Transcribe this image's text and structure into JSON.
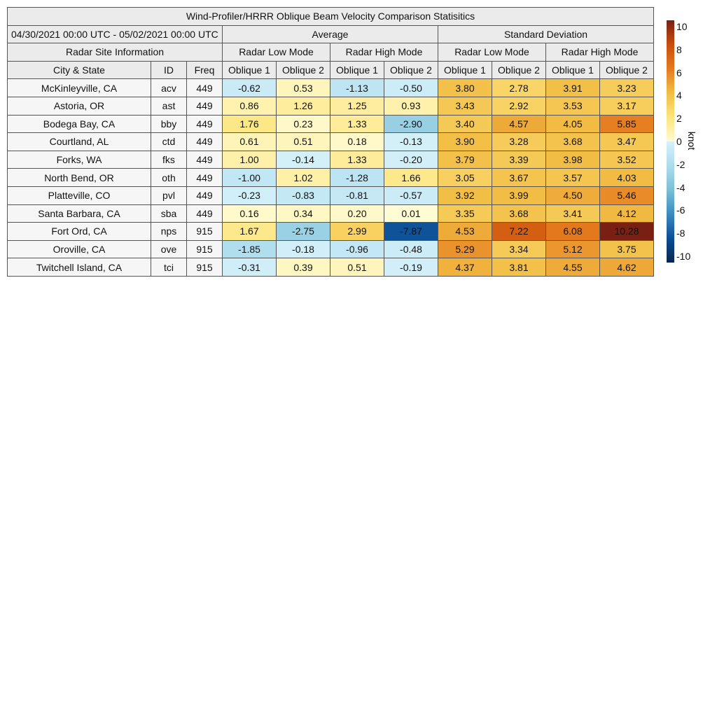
{
  "chart_data": {
    "type": "heatmap",
    "title": "Wind-Profiler/HRRR Oblique Beam Velocity Comparison Statisitics",
    "date_range": "04/30/2021 00:00 UTC - 05/02/2021 00:00 UTC",
    "site_info_header": "Radar Site Information",
    "groups": [
      "Average",
      "Standard Deviation"
    ],
    "modes": [
      "Radar Low Mode",
      "Radar High Mode",
      "Radar Low Mode",
      "Radar High Mode"
    ],
    "columns": [
      "City & State",
      "ID",
      "Freq",
      "Oblique 1",
      "Oblique 2",
      "Oblique 1",
      "Oblique 2",
      "Oblique 1",
      "Oblique 2",
      "Oblique 1",
      "Oblique 2"
    ],
    "rows": [
      {
        "city": "McKinleyville, CA",
        "id": "acv",
        "freq": "449",
        "values": [
          "-0.62",
          "0.53",
          "-1.13",
          "-0.50",
          "3.80",
          "2.78",
          "3.91",
          "3.23"
        ]
      },
      {
        "city": "Astoria, OR",
        "id": "ast",
        "freq": "449",
        "values": [
          "0.86",
          "1.26",
          "1.25",
          "0.93",
          "3.43",
          "2.92",
          "3.53",
          "3.17"
        ]
      },
      {
        "city": "Bodega Bay, CA",
        "id": "bby",
        "freq": "449",
        "values": [
          "1.76",
          "0.23",
          "1.33",
          "-2.90",
          "3.40",
          "4.57",
          "4.05",
          "5.85"
        ]
      },
      {
        "city": "Courtland, AL",
        "id": "ctd",
        "freq": "449",
        "values": [
          "0.61",
          "0.51",
          "0.18",
          "-0.13",
          "3.90",
          "3.28",
          "3.68",
          "3.47"
        ]
      },
      {
        "city": "Forks, WA",
        "id": "fks",
        "freq": "449",
        "values": [
          "1.00",
          "-0.14",
          "1.33",
          "-0.20",
          "3.79",
          "3.39",
          "3.98",
          "3.52"
        ]
      },
      {
        "city": "North Bend, OR",
        "id": "oth",
        "freq": "449",
        "values": [
          "-1.00",
          "1.02",
          "-1.28",
          "1.66",
          "3.05",
          "3.67",
          "3.57",
          "4.03"
        ]
      },
      {
        "city": "Platteville, CO",
        "id": "pvl",
        "freq": "449",
        "values": [
          "-0.23",
          "-0.83",
          "-0.81",
          "-0.57",
          "3.92",
          "3.99",
          "4.50",
          "5.46"
        ]
      },
      {
        "city": "Santa Barbara, CA",
        "id": "sba",
        "freq": "449",
        "values": [
          "0.16",
          "0.34",
          "0.20",
          "0.01",
          "3.35",
          "3.68",
          "3.41",
          "4.12"
        ]
      },
      {
        "city": "Fort Ord, CA",
        "id": "nps",
        "freq": "915",
        "values": [
          "1.67",
          "-2.75",
          "2.99",
          "-7.87",
          "4.53",
          "7.22",
          "6.08",
          "10.28"
        ]
      },
      {
        "city": "Oroville, CA",
        "id": "ove",
        "freq": "915",
        "values": [
          "-1.85",
          "-0.18",
          "-0.96",
          "-0.48",
          "5.29",
          "3.34",
          "5.12",
          "3.75"
        ]
      },
      {
        "city": "Twitchell Island, CA",
        "id": "tci",
        "freq": "915",
        "values": [
          "-0.31",
          "0.39",
          "0.51",
          "-0.19",
          "4.37",
          "3.81",
          "4.55",
          "4.62"
        ]
      }
    ],
    "colorbar": {
      "label": "knot",
      "range": [
        -10,
        10
      ],
      "ticks": [
        "10",
        "8",
        "6",
        "4",
        "2",
        "0",
        "-2",
        "-4",
        "-6",
        "-8",
        "-10"
      ],
      "colors": {
        "-10": "#08254f",
        "-8": "#0b4e96",
        "-6": "#3a8cc0",
        "-4": "#7cbfd6",
        "-2": "#aedced",
        "-0": "#d6f1fa",
        "0": "#fffbd2",
        "2": "#fde57e",
        "4": "#f2bd44",
        "6": "#e57a1e",
        "8": "#c94e0b",
        "10": "#7a2012"
      }
    }
  }
}
